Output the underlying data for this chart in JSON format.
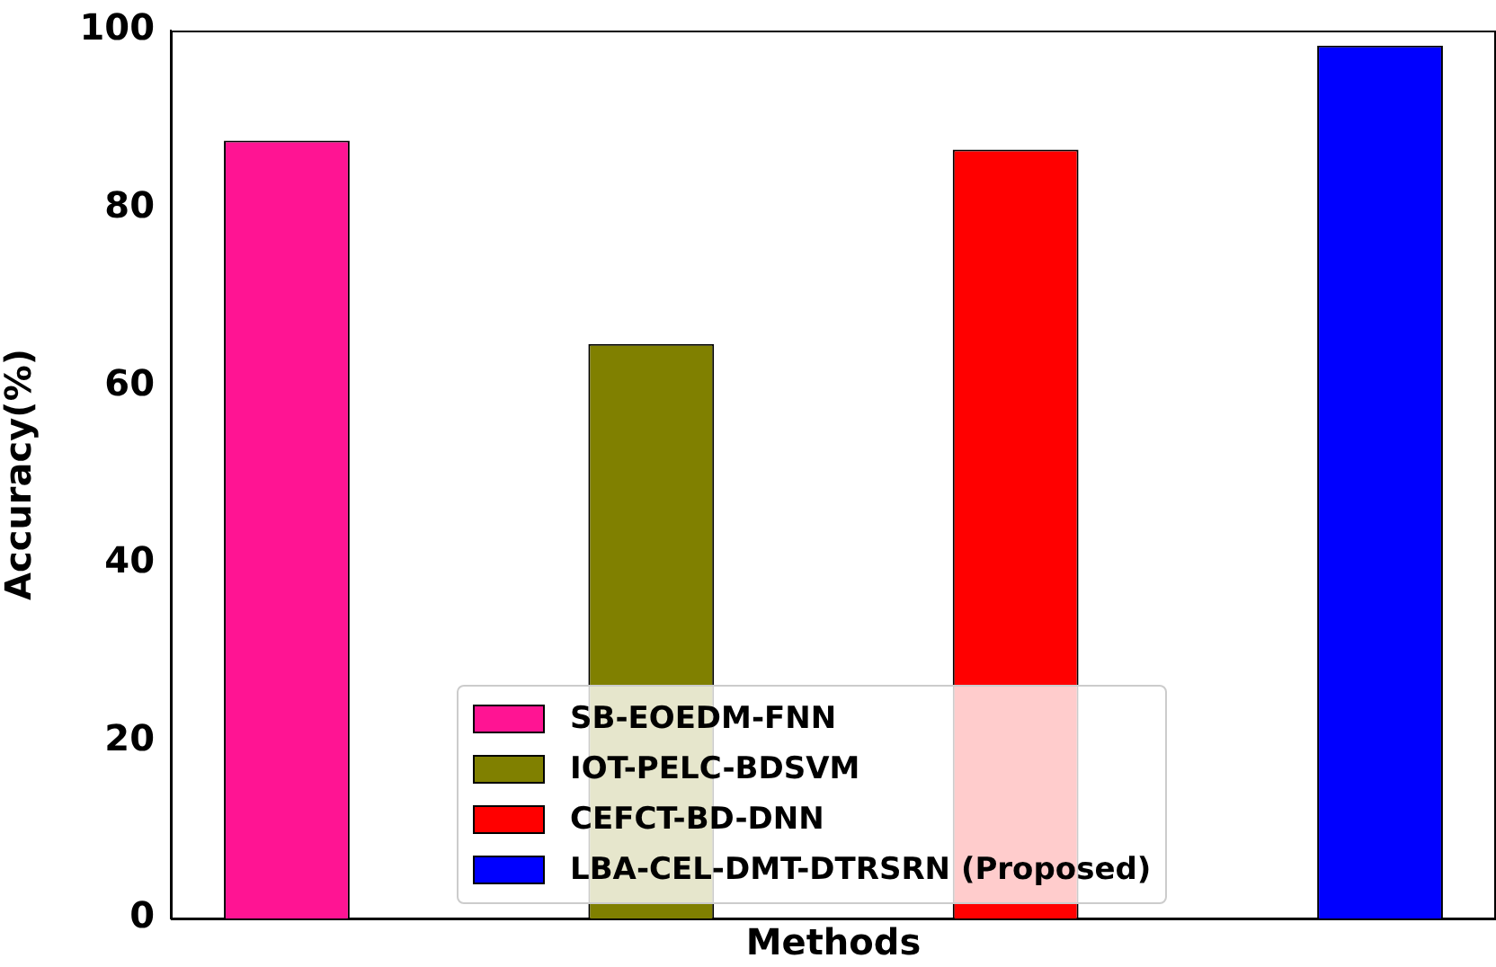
{
  "chart_data": {
    "type": "bar",
    "xlabel": "Methods",
    "ylabel": "Accuracy(%)",
    "categories": [
      null
    ],
    "series": [
      {
        "name": "SB-EOEDM-FNN",
        "color": "#ff1493",
        "values": [
          87.6
        ]
      },
      {
        "name": "IOT-PELC-BDSVM",
        "color": "#808000",
        "values": [
          64.7
        ]
      },
      {
        "name": "CEFCT-BD-DNN",
        "color": "#ff0000",
        "values": [
          86.6
        ]
      },
      {
        "name": "LBA-CEL-DMT-DTRSRN (Proposed)",
        "color": "#0000ff",
        "values": [
          98.3
        ]
      }
    ],
    "ylim": [
      0,
      100
    ],
    "yticks": [
      0,
      20,
      40,
      60,
      80,
      100
    ],
    "grid": false,
    "legend": "bottom",
    "tick_labels": "y"
  }
}
